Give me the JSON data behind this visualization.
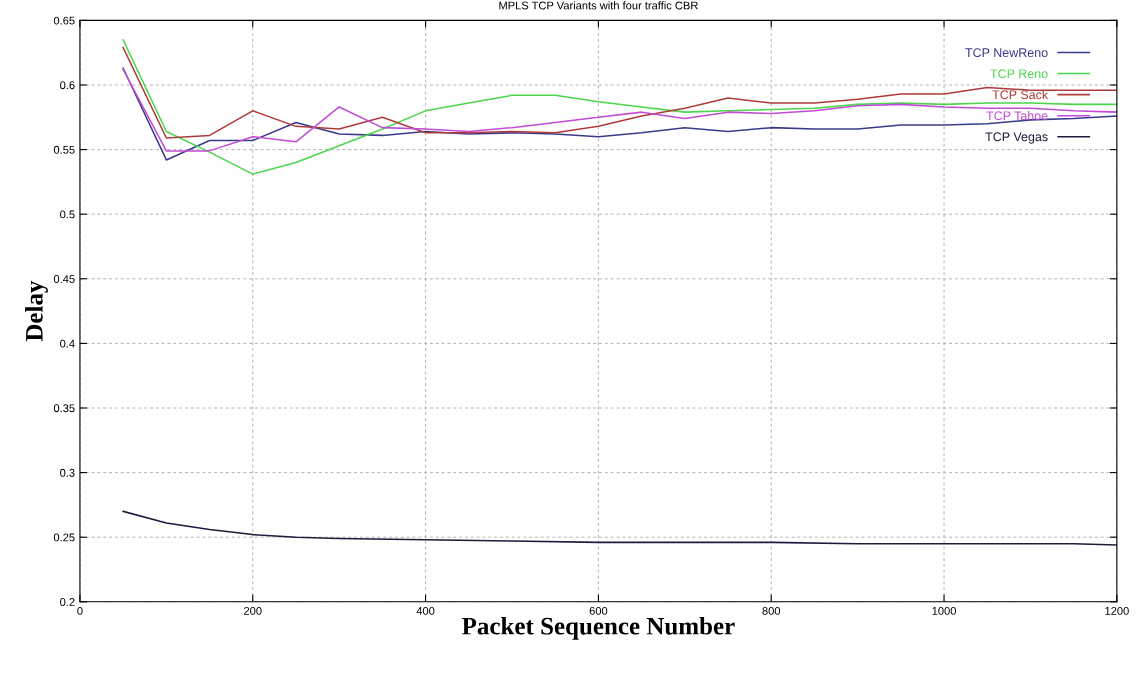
{
  "chart_data": {
    "type": "line",
    "title": "MPLS TCP Variants with four traffic CBR",
    "xlabel": "Packet Sequence Number",
    "ylabel": "Delay",
    "x": [
      50,
      100,
      150,
      200,
      250,
      300,
      350,
      400,
      450,
      500,
      550,
      600,
      650,
      700,
      750,
      800,
      850,
      900,
      950,
      1000,
      1050,
      1100,
      1150,
      1200
    ],
    "series": [
      {
        "name": "TCP NewReno",
        "color": "#3a3a8c",
        "values": [
          0.613,
          0.542,
          0.557,
          0.557,
          0.571,
          0.562,
          0.561,
          0.564,
          0.562,
          0.563,
          0.562,
          0.56,
          0.563,
          0.567,
          0.564,
          0.567,
          0.566,
          0.566,
          0.569,
          0.569,
          0.57,
          0.573,
          0.574,
          0.576
        ]
      },
      {
        "name": "TCP Reno",
        "color": "#4cd64c",
        "values": [
          0.635,
          0.564,
          0.548,
          0.531,
          0.54,
          0.553,
          0.566,
          0.58,
          0.586,
          0.592,
          0.592,
          0.587,
          0.583,
          0.579,
          0.58,
          0.581,
          0.582,
          0.585,
          0.586,
          0.585,
          0.586,
          0.586,
          0.585,
          0.585
        ]
      },
      {
        "name": "TCP Sack",
        "color": "#b03a3a",
        "values": [
          0.629,
          0.559,
          0.561,
          0.58,
          0.568,
          0.566,
          0.575,
          0.563,
          0.563,
          0.564,
          0.563,
          0.568,
          0.576,
          0.582,
          0.59,
          0.586,
          0.586,
          0.589,
          0.593,
          0.593,
          0.598,
          0.596,
          0.596,
          0.596
        ]
      },
      {
        "name": "TCP Tahoe",
        "color": "#c24cd6",
        "values": [
          0.612,
          0.549,
          0.549,
          0.56,
          0.556,
          0.583,
          0.567,
          0.566,
          0.564,
          0.567,
          0.571,
          0.575,
          0.579,
          0.574,
          0.579,
          0.578,
          0.58,
          0.584,
          0.585,
          0.583,
          0.582,
          0.582,
          0.58,
          0.579
        ]
      },
      {
        "name": "TCP Vegas",
        "color": "#1c1c3c",
        "x": [
          50,
          100,
          150,
          200,
          250,
          300,
          400,
          500,
          600,
          700,
          800,
          900,
          1000,
          1100,
          1150,
          1200
        ],
        "values": [
          0.27,
          0.261,
          0.256,
          0.252,
          0.25,
          0.249,
          0.248,
          0.247,
          0.246,
          0.246,
          0.246,
          0.245,
          0.245,
          0.245,
          0.245,
          0.244
        ]
      }
    ],
    "xlim": [
      0,
      1200
    ],
    "xticks": [
      0,
      200,
      400,
      600,
      800,
      1000,
      1200
    ],
    "ylim": [
      0.2,
      0.65
    ],
    "yticks": [
      0.2,
      0.25,
      0.3,
      0.35,
      0.4,
      0.45,
      0.5,
      0.55,
      0.6,
      0.65
    ],
    "grid": true,
    "legend": "top right",
    "marker": "none",
    "line_style": "solid"
  }
}
